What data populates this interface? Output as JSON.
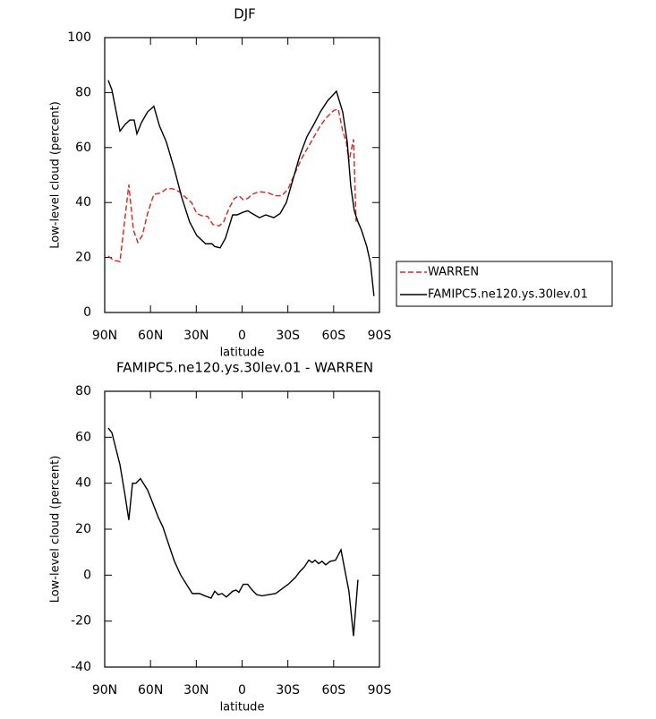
{
  "chart_data": [
    {
      "type": "line",
      "title": "DJF",
      "xlabel": "latitude",
      "ylabel": "Low-level cloud (percent)",
      "xlim": [
        90,
        -90
      ],
      "ylim": [
        0,
        100
      ],
      "xticks": [
        {
          "value": 90,
          "label": "90N"
        },
        {
          "value": 60,
          "label": "60N"
        },
        {
          "value": 30,
          "label": "30N"
        },
        0,
        {
          "value": -30,
          "label": "30S"
        },
        {
          "value": -60,
          "label": "60S"
        },
        {
          "value": -90,
          "label": "90S"
        }
      ],
      "yticks": [
        0,
        20,
        40,
        60,
        80,
        100
      ],
      "legend": "right",
      "series": [
        {
          "name": "WARREN",
          "color": "#e0201e",
          "linestyle": "dashed",
          "x": [
            87.7,
            84.1,
            80.0,
            74.2,
            71.2,
            68.3,
            65.4,
            61.9,
            57.8,
            53.1,
            49.6,
            45.5,
            41.3,
            37.2,
            33.1,
            29.7,
            25.5,
            22.6,
            19.1,
            15.0,
            12.0,
            8.5,
            5.0,
            2.1,
            -0.8,
            -3.7,
            -6.6,
            -11.4,
            -17.3,
            -21.4,
            -26.1,
            -30.2,
            -34.9,
            -39.0,
            -43.1,
            -47.2,
            -51.3,
            -55.4,
            -60.1,
            -63.0,
            -65.9,
            -68.3,
            -70.0,
            -73.0,
            -74.7
          ],
          "values": [
            20.5,
            19,
            18.5,
            46.5,
            30,
            25.5,
            28,
            36,
            43,
            43.5,
            45,
            45,
            44,
            42,
            40,
            36,
            35,
            35,
            32,
            31.5,
            33,
            38,
            41.5,
            42.5,
            41,
            41.5,
            43,
            44,
            43.5,
            42.5,
            42.5,
            45,
            51,
            56,
            60,
            64,
            68,
            71,
            73.5,
            74,
            66,
            62,
            55,
            63,
            33
          ]
        },
        {
          "name": "FAMIPC5.ne120.ys.30lev.01",
          "color": "#000000",
          "linestyle": "solid",
          "x": [
            87.7,
            85.3,
            80.0,
            76.5,
            73.6,
            70.7,
            68.9,
            66.0,
            61.9,
            57.8,
            54.2,
            49.6,
            44.3,
            39.6,
            34.4,
            29.7,
            23.9,
            19.7,
            17.9,
            14.4,
            10.9,
            6.2,
            3.3,
            -0.8,
            -3.7,
            -6.6,
            -11.4,
            -15.5,
            -20.8,
            -24.9,
            -29.0,
            -33.1,
            -37.8,
            -42.5,
            -46.6,
            -51.3,
            -56.0,
            -61.8,
            -65.9,
            -68.9,
            -71.2,
            -73.5,
            -75.9,
            -78.2,
            -81.7,
            -84.1,
            -86.4
          ],
          "values": [
            84.5,
            81,
            66,
            68.5,
            70,
            70,
            65,
            69,
            73,
            75,
            68,
            62,
            52,
            42,
            33,
            28,
            25,
            25,
            24,
            23.5,
            27,
            35.5,
            35.5,
            36.5,
            37,
            36,
            34.5,
            35.5,
            34.5,
            36,
            40,
            48,
            57,
            64,
            68,
            73,
            77,
            80.5,
            73,
            62,
            46,
            37,
            33,
            30,
            24,
            18,
            6
          ]
        }
      ]
    },
    {
      "type": "line",
      "title": "FAMIPC5.ne120.ys.30lev.01 - WARREN",
      "xlabel": "latitude",
      "ylabel": "Low-level cloud (percent)",
      "xlim": [
        90,
        -90
      ],
      "ylim": [
        -40,
        80
      ],
      "xticks": [
        {
          "value": 90,
          "label": "90N"
        },
        {
          "value": 60,
          "label": "60N"
        },
        {
          "value": 30,
          "label": "30N"
        },
        0,
        {
          "value": -30,
          "label": "30S"
        },
        {
          "value": -60,
          "label": "60S"
        },
        {
          "value": -90,
          "label": "90S"
        }
      ],
      "yticks": [
        -40,
        -20,
        0,
        20,
        40,
        60,
        80
      ],
      "series": [
        {
          "color": "#000000",
          "linestyle": "solid",
          "x": [
            87.7,
            85.3,
            80.0,
            76.5,
            74.2,
            71.8,
            69.5,
            66.6,
            61.9,
            58.9,
            54.8,
            51.9,
            48.4,
            44.3,
            40.2,
            35.5,
            32.6,
            27.9,
            24.4,
            20.3,
            17.9,
            15.6,
            13.2,
            10.3,
            6.2,
            3.9,
            2.1,
            -0.8,
            -3.7,
            -6.6,
            -9.6,
            -13.1,
            -17.2,
            -22.0,
            -26.1,
            -30.2,
            -34.9,
            -37.8,
            -40.7,
            -43.7,
            -46.0,
            -47.8,
            -50.1,
            -52.4,
            -54.8,
            -57.7,
            -61.2,
            -64.8,
            -67.1,
            -70.0,
            -73.0,
            -75.9
          ],
          "values": [
            64,
            62,
            48,
            34,
            24,
            40,
            40,
            42,
            37,
            32,
            25,
            21,
            14,
            6,
            0,
            -5,
            -8,
            -8,
            -9,
            -10,
            -7,
            -8.5,
            -8,
            -9.5,
            -7,
            -6.5,
            -7.5,
            -4,
            -4,
            -6.5,
            -8.5,
            -9,
            -8.5,
            -8,
            -6,
            -4,
            -1,
            1.5,
            3.5,
            6.5,
            5.5,
            6.5,
            5,
            6,
            4.5,
            6,
            6.5,
            11,
            3,
            -7,
            -26.5,
            -2
          ]
        }
      ]
    }
  ]
}
